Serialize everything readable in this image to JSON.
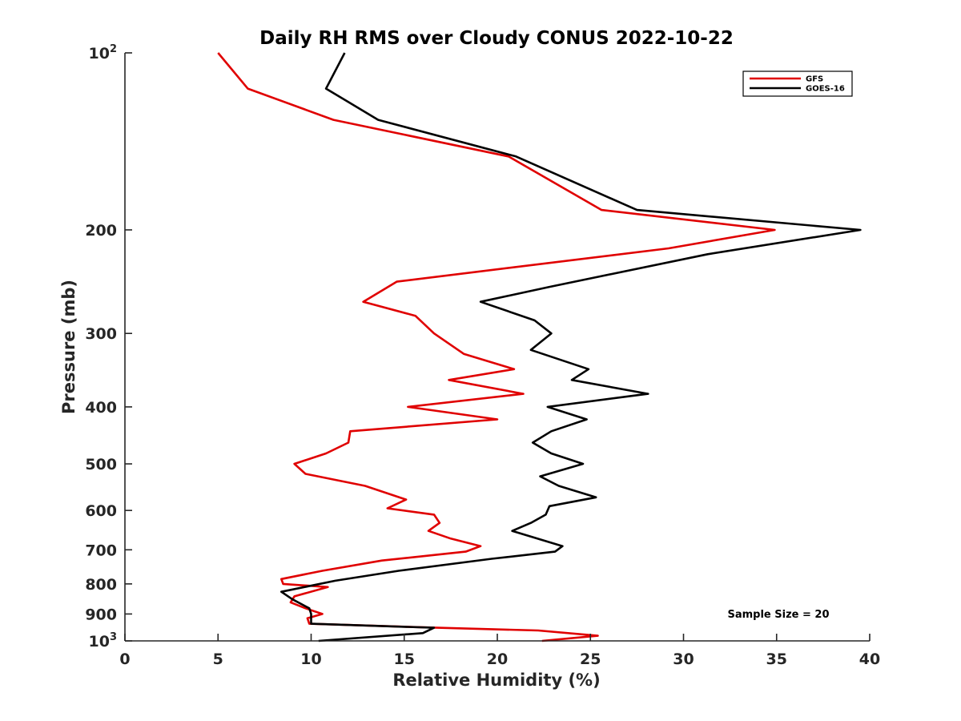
{
  "chart_data": {
    "type": "line",
    "title": "Daily RH RMS over Cloudy CONUS 2022-10-22",
    "xlabel": "Relative Humidity (%)",
    "ylabel": "Pressure (mb)",
    "xlim": [
      0,
      40
    ],
    "ylim": [
      100,
      1000
    ],
    "y_scale": "log",
    "y_reversed": true,
    "x_ticks": [
      0,
      5,
      10,
      15,
      20,
      25,
      30,
      35,
      40
    ],
    "y_ticks": [
      {
        "value": 100,
        "label": "10",
        "sup": "2"
      },
      {
        "value": 200,
        "label": "200",
        "sup": ""
      },
      {
        "value": 300,
        "label": "300",
        "sup": ""
      },
      {
        "value": 400,
        "label": "400",
        "sup": ""
      },
      {
        "value": 500,
        "label": "500",
        "sup": ""
      },
      {
        "value": 600,
        "label": "600",
        "sup": ""
      },
      {
        "value": 700,
        "label": "700",
        "sup": ""
      },
      {
        "value": 800,
        "label": "800",
        "sup": ""
      },
      {
        "value": 900,
        "label": "900",
        "sup": ""
      },
      {
        "value": 1000,
        "label": "10",
        "sup": "3"
      }
    ],
    "grid": false,
    "legend_position": "top-right",
    "annotation": "Sample Size = 20",
    "series": [
      {
        "name": "GFS",
        "color": "#e00000",
        "points": [
          {
            "x": 5.0,
            "p": 100
          },
          {
            "x": 6.6,
            "p": 115
          },
          {
            "x": 11.2,
            "p": 130
          },
          {
            "x": 20.6,
            "p": 150
          },
          {
            "x": 25.6,
            "p": 185
          },
          {
            "x": 34.9,
            "p": 200
          },
          {
            "x": 29.2,
            "p": 215
          },
          {
            "x": 14.6,
            "p": 245
          },
          {
            "x": 12.8,
            "p": 265
          },
          {
            "x": 15.6,
            "p": 280
          },
          {
            "x": 16.6,
            "p": 300
          },
          {
            "x": 18.2,
            "p": 325
          },
          {
            "x": 20.9,
            "p": 345
          },
          {
            "x": 17.4,
            "p": 360
          },
          {
            "x": 21.4,
            "p": 380
          },
          {
            "x": 15.2,
            "p": 400
          },
          {
            "x": 20.0,
            "p": 420
          },
          {
            "x": 12.1,
            "p": 440
          },
          {
            "x": 12.0,
            "p": 460
          },
          {
            "x": 10.8,
            "p": 480
          },
          {
            "x": 9.1,
            "p": 500
          },
          {
            "x": 9.7,
            "p": 520
          },
          {
            "x": 12.9,
            "p": 545
          },
          {
            "x": 15.1,
            "p": 575
          },
          {
            "x": 14.1,
            "p": 595
          },
          {
            "x": 16.6,
            "p": 610
          },
          {
            "x": 16.9,
            "p": 630
          },
          {
            "x": 16.3,
            "p": 650
          },
          {
            "x": 17.5,
            "p": 670
          },
          {
            "x": 19.1,
            "p": 690
          },
          {
            "x": 18.3,
            "p": 705
          },
          {
            "x": 13.8,
            "p": 730
          },
          {
            "x": 10.6,
            "p": 760
          },
          {
            "x": 8.4,
            "p": 785
          },
          {
            "x": 8.5,
            "p": 800
          },
          {
            "x": 10.9,
            "p": 810
          },
          {
            "x": 9.1,
            "p": 840
          },
          {
            "x": 8.9,
            "p": 860
          },
          {
            "x": 9.7,
            "p": 880
          },
          {
            "x": 10.6,
            "p": 900
          },
          {
            "x": 9.8,
            "p": 915
          },
          {
            "x": 9.9,
            "p": 935
          },
          {
            "x": 16.8,
            "p": 950
          },
          {
            "x": 22.2,
            "p": 960
          },
          {
            "x": 25.4,
            "p": 980
          },
          {
            "x": 22.4,
            "p": 1000
          }
        ]
      },
      {
        "name": "GOES-16",
        "color": "#000000",
        "points": [
          {
            "x": 11.8,
            "p": 100
          },
          {
            "x": 10.8,
            "p": 115
          },
          {
            "x": 13.6,
            "p": 130
          },
          {
            "x": 21.0,
            "p": 150
          },
          {
            "x": 27.5,
            "p": 185
          },
          {
            "x": 39.5,
            "p": 200
          },
          {
            "x": 31.3,
            "p": 220
          },
          {
            "x": 22.8,
            "p": 250
          },
          {
            "x": 19.1,
            "p": 265
          },
          {
            "x": 22.0,
            "p": 285
          },
          {
            "x": 22.9,
            "p": 300
          },
          {
            "x": 21.8,
            "p": 320
          },
          {
            "x": 24.9,
            "p": 345
          },
          {
            "x": 24.0,
            "p": 360
          },
          {
            "x": 28.1,
            "p": 380
          },
          {
            "x": 22.7,
            "p": 400
          },
          {
            "x": 24.8,
            "p": 420
          },
          {
            "x": 22.9,
            "p": 440
          },
          {
            "x": 21.9,
            "p": 460
          },
          {
            "x": 22.9,
            "p": 480
          },
          {
            "x": 24.6,
            "p": 500
          },
          {
            "x": 22.3,
            "p": 525
          },
          {
            "x": 23.3,
            "p": 545
          },
          {
            "x": 25.3,
            "p": 570
          },
          {
            "x": 22.8,
            "p": 590
          },
          {
            "x": 22.6,
            "p": 610
          },
          {
            "x": 21.8,
            "p": 630
          },
          {
            "x": 20.8,
            "p": 650
          },
          {
            "x": 23.5,
            "p": 690
          },
          {
            "x": 23.1,
            "p": 705
          },
          {
            "x": 19.7,
            "p": 725
          },
          {
            "x": 14.7,
            "p": 760
          },
          {
            "x": 11.3,
            "p": 790
          },
          {
            "x": 8.4,
            "p": 825
          },
          {
            "x": 9.0,
            "p": 850
          },
          {
            "x": 9.9,
            "p": 880
          },
          {
            "x": 10.0,
            "p": 900
          },
          {
            "x": 10.0,
            "p": 935
          },
          {
            "x": 16.6,
            "p": 950
          },
          {
            "x": 16.0,
            "p": 970
          },
          {
            "x": 10.4,
            "p": 1000
          }
        ]
      }
    ]
  }
}
